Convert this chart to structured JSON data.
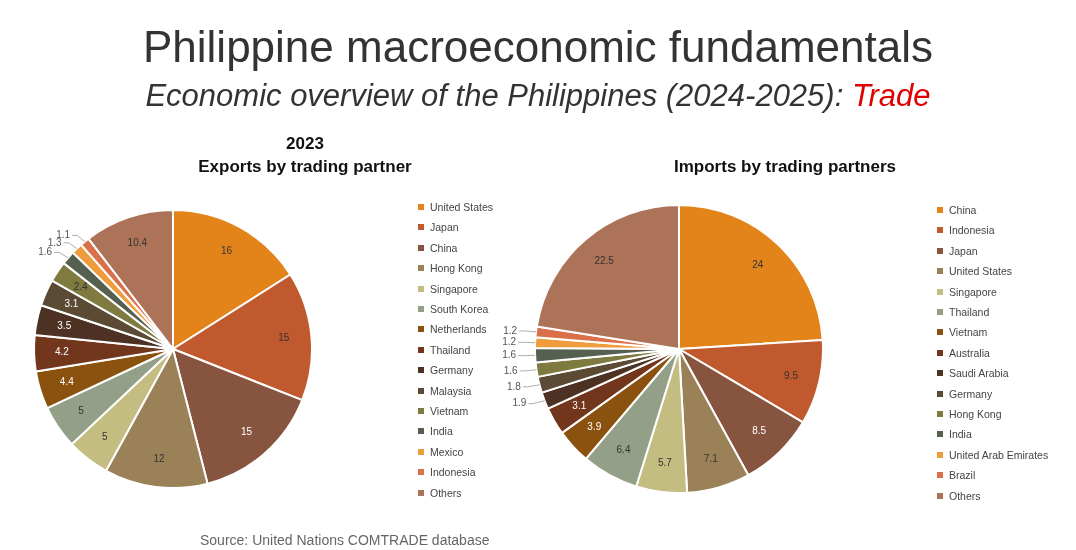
{
  "chart_data": [
    {
      "type": "pie",
      "title": "2023",
      "subtitle": "Exports by trading partner",
      "legend": "right",
      "data_labels": true,
      "annotations": [
        "Philippine macroeconomic fundamentals",
        "Economic overview of the Philippines (2024-2025): Trade",
        "Source: United Nations COMTRADE database"
      ],
      "categories": [
        "United States",
        "Japan",
        "China",
        "Hong Kong",
        "Singapore",
        "South Korea",
        "Netherlands",
        "Thailand",
        "Germany",
        "Malaysia",
        "Vietnam",
        "India",
        "Mexico",
        "Indonesia",
        "Others"
      ],
      "values": [
        16,
        15,
        15,
        12,
        5,
        5,
        4.4,
        4.2,
        3.5,
        3.1,
        2.4,
        1.6,
        1.3,
        1.1,
        10.4
      ],
      "colors": [
        "#e3841a",
        "#c05a2e",
        "#87553f",
        "#9b8157",
        "#c4bd82",
        "#939f86",
        "#8a520e",
        "#72361d",
        "#4d3224",
        "#5b4b34",
        "#7f7a40",
        "#566050",
        "#ef9c3c",
        "#d9704a",
        "#ad7358"
      ]
    },
    {
      "type": "pie",
      "title": "Imports by trading partners",
      "legend": "right",
      "data_labels": true,
      "categories": [
        "China",
        "Indonesia",
        "Japan",
        "United States",
        "Singapore",
        "Thailand",
        "Vietnam",
        "Australia",
        "Saudi Arabia",
        "Germany",
        "Hong Kong",
        "India",
        "United Arab Emirates",
        "Brazil",
        "Others"
      ],
      "values": [
        24,
        9.5,
        8.5,
        7.1,
        5.7,
        6.4,
        3.9,
        3.1,
        1.9,
        1.8,
        1.6,
        1.6,
        1.2,
        1.2,
        22.5
      ],
      "colors": [
        "#e3841a",
        "#c05a2e",
        "#87553f",
        "#9b8157",
        "#c4bd82",
        "#939f86",
        "#8a520e",
        "#72361d",
        "#4d3224",
        "#5b4b34",
        "#7f7a40",
        "#566050",
        "#ef9c3c",
        "#d9704a",
        "#ad7358"
      ]
    }
  ]
}
